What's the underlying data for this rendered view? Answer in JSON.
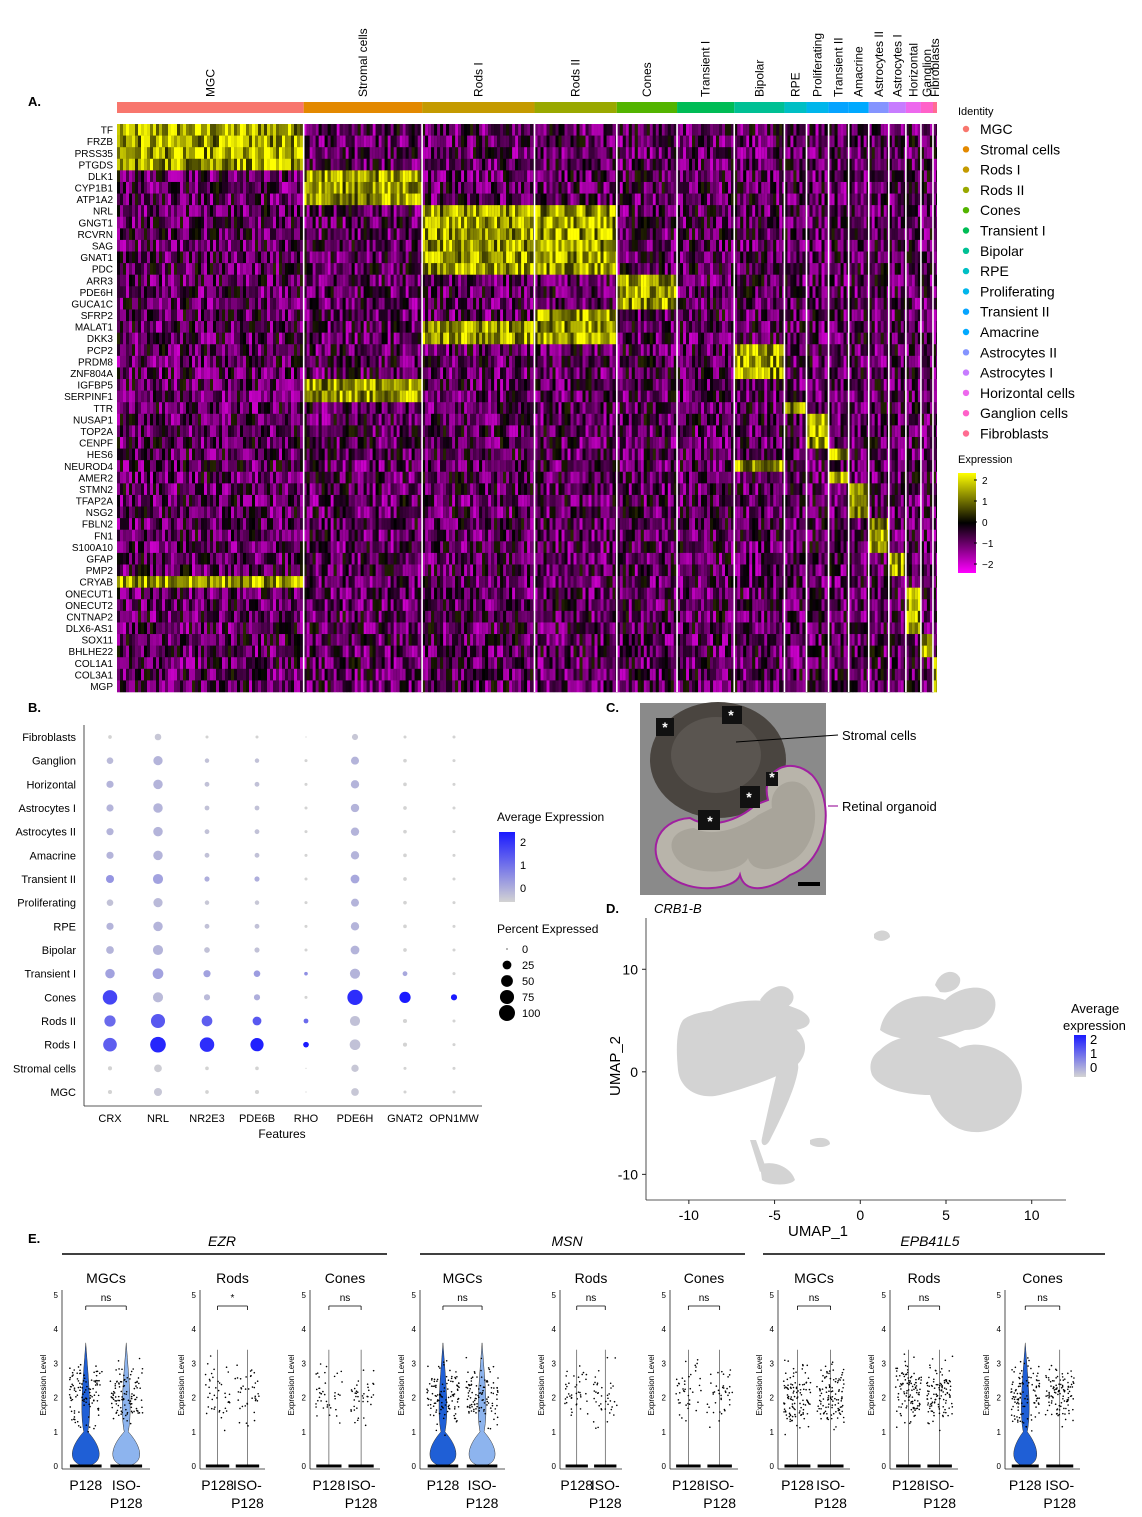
{
  "panel_labels": [
    "A.",
    "B.",
    "C.",
    "D.",
    "E."
  ],
  "heatmap": {
    "clusters": [
      {
        "name": "MGC",
        "color": "#F8766D",
        "n": 186
      },
      {
        "name": "Stromal cells",
        "color": "#E38900",
        "n": 118
      },
      {
        "name": "Rods I",
        "color": "#C49A00",
        "n": 112
      },
      {
        "name": "Rods II",
        "color": "#99A800",
        "n": 82
      },
      {
        "name": "Cones",
        "color": "#53B400",
        "n": 60
      },
      {
        "name": "Transient I",
        "color": "#00BC56",
        "n": 57
      },
      {
        "name": "Bipolar",
        "color": "#00C094",
        "n": 50
      },
      {
        "name": "RPE",
        "color": "#00BFC4",
        "n": 22
      },
      {
        "name": "Proliferating",
        "color": "#00B6EB",
        "n": 22
      },
      {
        "name": "Transient II",
        "color": "#06A4FF",
        "n": 20
      },
      {
        "name": "Amacrine",
        "color": "#00A9FF",
        "n": 20
      },
      {
        "name": "Astrocytes II",
        "color": "#8494FF",
        "n": 20
      },
      {
        "name": "Astrocytes I",
        "color": "#C77CFF",
        "n": 17
      },
      {
        "name": "Horizontal",
        "color": "#ED68ED",
        "n": 15
      },
      {
        "name": "Ganglion",
        "color": "#FF61C9",
        "n": 12
      },
      {
        "name": "Fibroblasts",
        "color": "#FF6C91",
        "n": 4
      }
    ],
    "genes": [
      "TF",
      "FRZB",
      "PRSS35",
      "PTGDS",
      "DLK1",
      "CYP1B1",
      "ATP1A2",
      "NRL",
      "GNGT1",
      "RCVRN",
      "SAG",
      "GNAT1",
      "PDC",
      "ARR3",
      "PDE6H",
      "GUCA1C",
      "SFRP2",
      "MALAT1",
      "DKK3",
      "PCP2",
      "PRDM8",
      "ZNF804A",
      "IGFBP5",
      "SERPINF1",
      "TTR",
      "NUSAP1",
      "TOP2A",
      "CENPF",
      "HES6",
      "NEUROD4",
      "AMER2",
      "STMN2",
      "TFAP2A",
      "NSG2",
      "FBLN2",
      "FN1",
      "S100A10",
      "GFAP",
      "PMP2",
      "CRYAB",
      "ONECUT1",
      "ONECUT2",
      "CNTNAP2",
      "DLX6-AS1",
      "SOX11",
      "BHLHE22",
      "COL1A1",
      "COL3A1",
      "MGP"
    ],
    "gene_cluster": [
      0,
      0,
      0,
      0,
      1,
      1,
      1,
      2,
      2,
      2,
      2,
      2,
      2,
      4,
      4,
      4,
      3,
      3,
      3,
      6,
      6,
      6,
      1,
      1,
      7,
      8,
      8,
      8,
      9,
      6,
      9,
      10,
      10,
      10,
      11,
      11,
      11,
      12,
      12,
      0,
      13,
      13,
      13,
      13,
      14,
      14,
      15,
      15,
      15
    ],
    "legend_title": "Identity",
    "legend_labels": [
      "MGC",
      "Stromal cells",
      "Rods I",
      "Rods II",
      "Cones",
      "Transient I",
      "Bipolar",
      "RPE",
      "Proliferating",
      "Transient II",
      "Amacrine",
      "Astrocytes II",
      "Astrocytes I",
      "Horizontal cells",
      "Ganglion cells",
      "Fibroblasts"
    ],
    "expression_title": "Expression",
    "expression_ticks": [
      "2",
      "1",
      "0",
      "−1",
      "−2"
    ]
  },
  "chart_data": [
    {
      "type": "scatter",
      "panel": "B",
      "x_categories": [
        "CRX",
        "NRL",
        "NR2E3",
        "PDE6B",
        "RHO",
        "PDE6H",
        "GNAT2",
        "OPN1MW"
      ],
      "y_categories": [
        "MGC",
        "Stromal cells",
        "Rods I",
        "Rods II",
        "Cones",
        "Transient I",
        "Bipolar",
        "RPE",
        "Proliferating",
        "Transient II",
        "Amacrine",
        "Astrocytes II",
        "Astrocytes I",
        "Horizontal",
        "Ganglion",
        "Fibroblasts"
      ],
      "xlabel": "Features",
      "avg_expression_legend": {
        "title": "Average Expression",
        "ticks": [
          2,
          1,
          0
        ]
      },
      "percent_legend": {
        "title": "Percent Expressed",
        "ticks": [
          0,
          25,
          50,
          75,
          100
        ]
      },
      "avg_expression": [
        [
          -0.5,
          -0.3,
          -0.5,
          -0.5,
          -0.5,
          -0.3,
          -0.5,
          -0.5
        ],
        [
          -0.5,
          -0.4,
          -0.5,
          -0.5,
          -0.5,
          -0.3,
          -0.5,
          -0.5
        ],
        [
          1.4,
          2.3,
          2.2,
          2.4,
          2.5,
          -0.2,
          -0.5,
          -0.5
        ],
        [
          1.2,
          1.5,
          1.4,
          1.5,
          1.2,
          -0.2,
          -0.5,
          -0.5
        ],
        [
          1.8,
          -0.1,
          -0.1,
          0.1,
          -0.5,
          2.2,
          2.5,
          2.6
        ],
        [
          0.3,
          0.3,
          0.3,
          0.4,
          0.6,
          0.0,
          0.2,
          -0.5
        ],
        [
          0.0,
          0.0,
          -0.2,
          -0.2,
          -0.5,
          0.0,
          -0.5,
          -0.5
        ],
        [
          0.0,
          0.0,
          -0.2,
          -0.2,
          -0.5,
          0.0,
          -0.5,
          -0.5
        ],
        [
          -0.2,
          -0.1,
          -0.3,
          -0.3,
          -0.5,
          0.0,
          -0.5,
          -0.5
        ],
        [
          0.5,
          0.3,
          0.1,
          0.1,
          -0.5,
          0.2,
          -0.5,
          -0.5
        ],
        [
          0.0,
          0.0,
          -0.2,
          -0.2,
          -0.5,
          0.0,
          -0.5,
          -0.5
        ],
        [
          0.0,
          0.0,
          -0.2,
          -0.2,
          -0.5,
          0.0,
          -0.5,
          -0.5
        ],
        [
          0.0,
          0.0,
          -0.2,
          -0.2,
          -0.5,
          0.0,
          -0.5,
          -0.5
        ],
        [
          0.0,
          0.0,
          -0.2,
          -0.2,
          -0.5,
          0.0,
          -0.5,
          -0.5
        ],
        [
          -0.1,
          0.0,
          -0.2,
          -0.2,
          -0.5,
          0.0,
          -0.5,
          -0.5
        ],
        [
          -0.5,
          -0.3,
          -0.5,
          -0.5,
          -0.5,
          -0.3,
          -0.5,
          -0.5
        ]
      ],
      "pct_expressed": [
        [
          3,
          20,
          2,
          3,
          0,
          18,
          1,
          1
        ],
        [
          3,
          18,
          2,
          2,
          0,
          16,
          1,
          1
        ],
        [
          70,
          95,
          80,
          65,
          8,
          40,
          3,
          1
        ],
        [
          45,
          75,
          40,
          25,
          5,
          35,
          3,
          1
        ],
        [
          80,
          35,
          10,
          10,
          1,
          90,
          45,
          10
        ],
        [
          30,
          40,
          15,
          12,
          2,
          35,
          5,
          1
        ],
        [
          18,
          35,
          8,
          6,
          1,
          25,
          2,
          1
        ],
        [
          15,
          30,
          5,
          5,
          1,
          22,
          2,
          1
        ],
        [
          12,
          28,
          4,
          4,
          1,
          20,
          2,
          1
        ],
        [
          20,
          35,
          6,
          6,
          1,
          25,
          2,
          1
        ],
        [
          15,
          30,
          5,
          5,
          1,
          22,
          2,
          1
        ],
        [
          15,
          30,
          5,
          5,
          1,
          22,
          2,
          1
        ],
        [
          15,
          30,
          5,
          5,
          1,
          22,
          2,
          1
        ],
        [
          15,
          30,
          5,
          5,
          1,
          22,
          2,
          1
        ],
        [
          12,
          28,
          4,
          4,
          1,
          20,
          2,
          1
        ],
        [
          2,
          12,
          1,
          1,
          0,
          10,
          1,
          1
        ]
      ]
    },
    {
      "type": "scatter",
      "panel": "D",
      "title": "CRB1-B",
      "xlabel": "UMAP_1",
      "ylabel": "UMAP_2",
      "xticks": [
        -10,
        -5,
        0,
        5,
        10
      ],
      "yticks": [
        10,
        0,
        -10
      ],
      "xlim": [
        -12.5,
        12
      ],
      "ylim": [
        -12.5,
        15
      ],
      "legend": {
        "title_line1": "Average",
        "title_line2": "expression",
        "ticks": [
          2,
          1,
          0
        ]
      },
      "note": "All cells shown in light grey (low expression)"
    },
    {
      "type": "violin",
      "panel": "E",
      "genes": [
        "EZR",
        "MSN",
        "EPB41L5"
      ],
      "cell_types": [
        "MGCs",
        "Rods",
        "Cones"
      ],
      "groups": [
        "P128",
        "ISO-P128"
      ],
      "ylabel": "Expression Level",
      "yticks": [
        0,
        1,
        2,
        3,
        4,
        5
      ],
      "significance": [
        [
          "ns",
          "*",
          "ns"
        ],
        [
          "ns",
          "ns",
          "ns"
        ],
        [
          "ns",
          "ns",
          "ns"
        ]
      ],
      "xtick_labels": [
        "P128",
        "ISO-",
        "P128"
      ]
    }
  ],
  "panel_c": {
    "labels": [
      "Stromal cells",
      "Retinal organoid"
    ],
    "asterisk": "*"
  }
}
